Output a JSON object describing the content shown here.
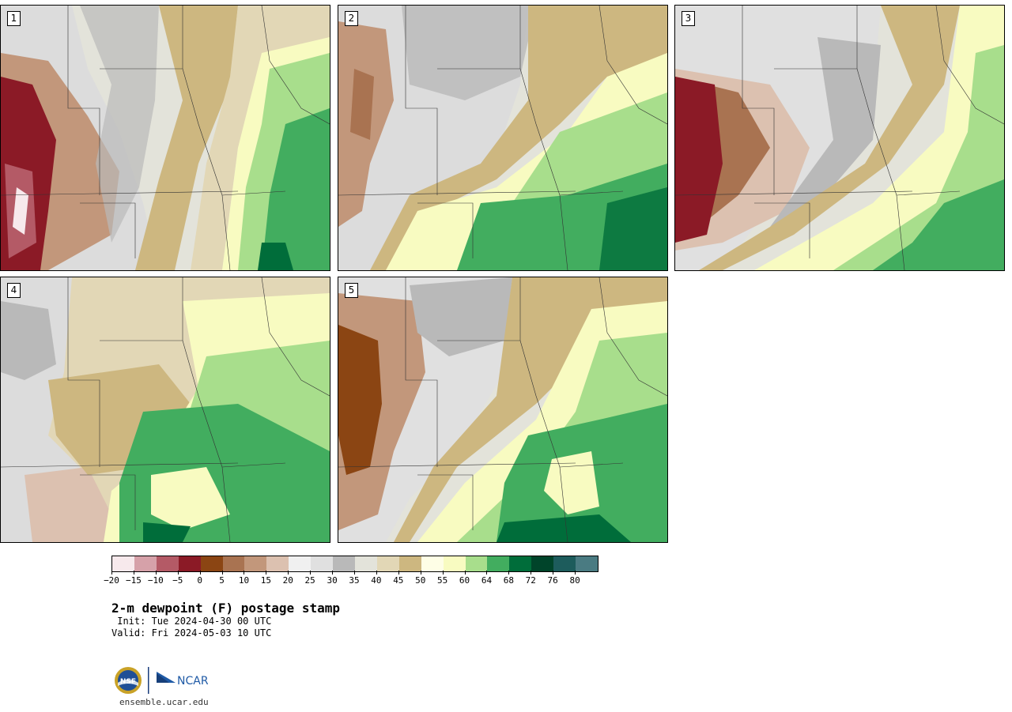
{
  "panels": [
    {
      "label": "1",
      "pattern": "west-dry-southeast-moist"
    },
    {
      "label": "2",
      "pattern": "moist-return-flow-south"
    },
    {
      "label": "3",
      "pattern": "dry-plains-moist-southeast"
    },
    {
      "label": "4",
      "pattern": "broad-moist-south-central"
    },
    {
      "label": "5",
      "pattern": "moist-southeast-dry-west"
    }
  ],
  "colorbar": {
    "colors": [
      "#f7e9ec",
      "#d6a1a9",
      "#b45a66",
      "#8b1a26",
      "#8b4513",
      "#a97351",
      "#c2977b",
      "#dcc1b0",
      "#f0f0f0",
      "#e0e0e0",
      "#b9b9b9",
      "#e3e3da",
      "#e2d7b6",
      "#cdb780",
      "#fefee6",
      "#f8fbc1",
      "#a8de8c",
      "#42ad5f",
      "#006d3a",
      "#00442a",
      "#1d5c5c",
      "#4a7b82"
    ],
    "tick_labels": [
      "−20",
      "−15",
      "−10",
      "−5",
      "0",
      "5",
      "10",
      "15",
      "20",
      "25",
      "30",
      "35",
      "40",
      "45",
      "50",
      "55",
      "60",
      "64",
      "68",
      "72",
      "76",
      "80"
    ]
  },
  "title": "2-m dewpoint (F) postage stamp",
  "init": " Init: Tue 2024-04-30 00 UTC",
  "valid": "Valid: Fri 2024-05-03 10 UTC",
  "logo": {
    "nsf_text": "NSF",
    "ncar_text": "NCAR"
  },
  "website": "ensemble.ucar.edu"
}
